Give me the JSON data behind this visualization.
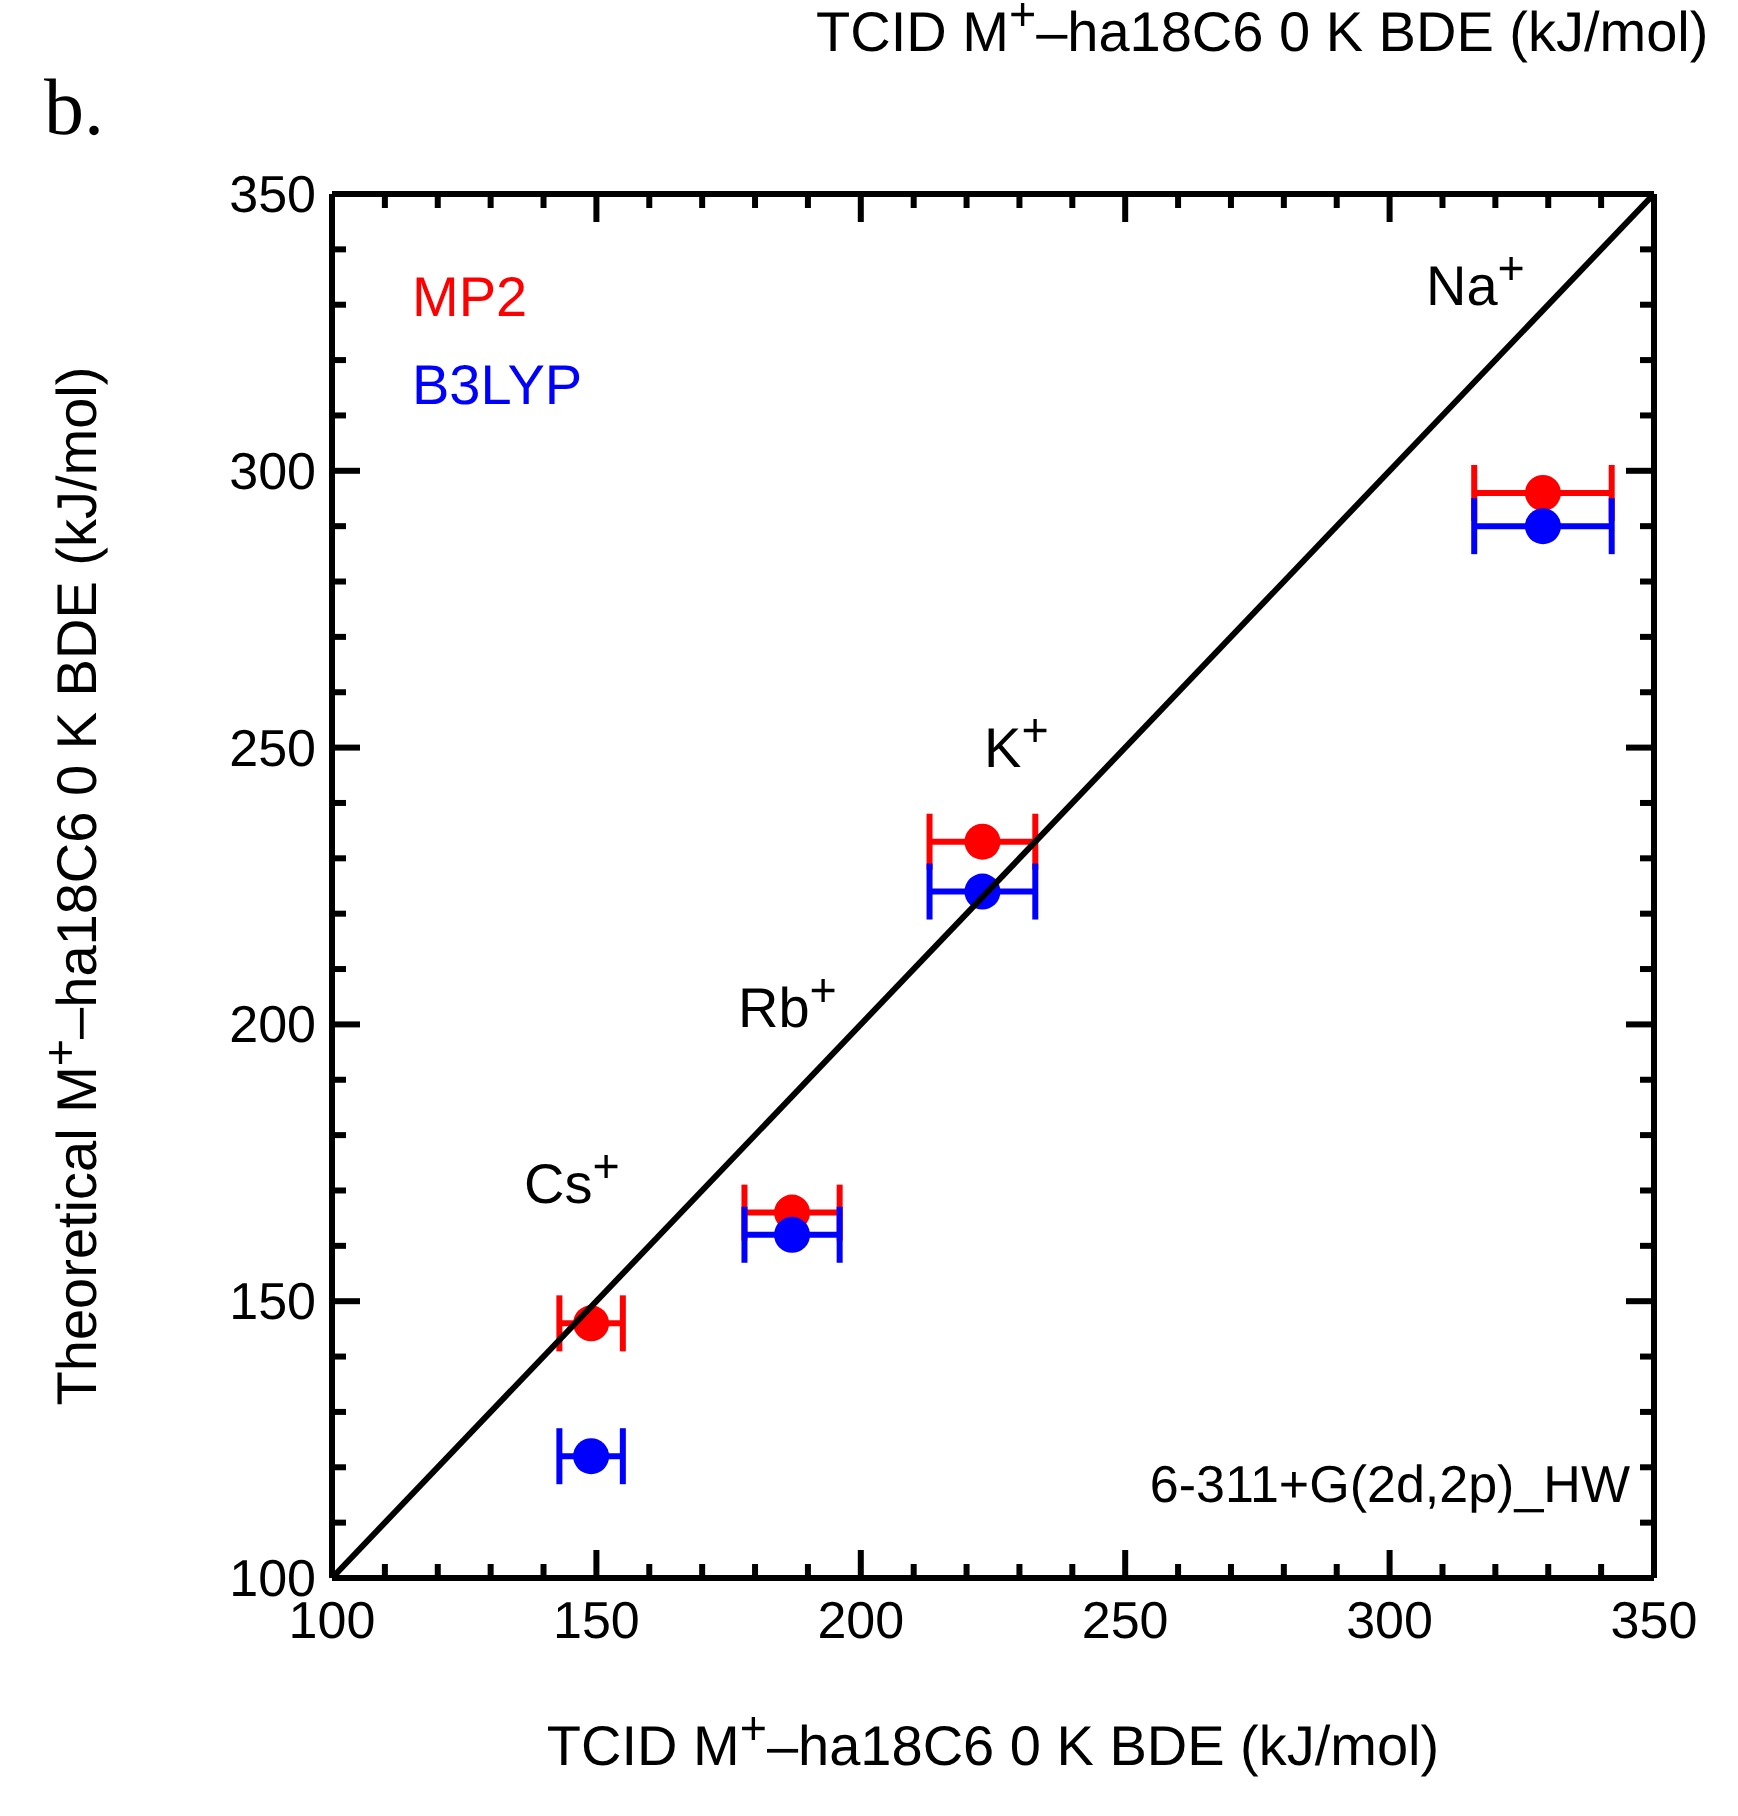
{
  "chart_data": {
    "type": "scatter",
    "xlabel": "TCID M$^{+}$–ha18C6 0 K BDE (kJ/mol)",
    "ylabel": "Theoretical M$^{+}$–ha18C6 0 K BDE (kJ/mol)",
    "xlim": [
      100,
      350
    ],
    "ylim": [
      100,
      350
    ],
    "xticks": [
      100,
      {
        "value": 110,
        "label": null
      },
      {
        "value": 120,
        "label": null
      },
      {
        "value": 130,
        "label": null
      },
      {
        "value": 140,
        "label": null
      },
      150,
      {
        "value": 160,
        "label": null
      },
      {
        "value": 170,
        "label": null
      },
      {
        "value": 180,
        "label": null
      },
      {
        "value": 190,
        "label": null
      },
      200,
      {
        "value": 210,
        "label": null
      },
      {
        "value": 220,
        "label": null
      },
      {
        "value": 230,
        "label": null
      },
      {
        "value": 240,
        "label": null
      },
      250,
      {
        "value": 260,
        "label": null
      },
      {
        "value": 270,
        "label": null
      },
      {
        "value": 280,
        "label": null
      },
      {
        "value": 290,
        "label": null
      },
      300,
      {
        "value": 310,
        "label": null
      },
      {
        "value": 320,
        "label": null
      },
      {
        "value": 330,
        "label": null
      },
      {
        "value": 340,
        "label": null
      },
      350
    ],
    "yticks": [
      100,
      {
        "value": 110,
        "label": null
      },
      {
        "value": 120,
        "label": null
      },
      {
        "value": 130,
        "label": null
      },
      {
        "value": 140,
        "label": null
      },
      150,
      {
        "value": 160,
        "label": null
      },
      {
        "value": 170,
        "label": null
      },
      {
        "value": 180,
        "label": null
      },
      {
        "value": 190,
        "label": null
      },
      200,
      {
        "value": 210,
        "label": null
      },
      {
        "value": 220,
        "label": null
      },
      {
        "value": 230,
        "label": null
      },
      {
        "value": 240,
        "label": null
      },
      250,
      {
        "value": 260,
        "label": null
      },
      {
        "value": 270,
        "label": null
      },
      {
        "value": 280,
        "label": null
      },
      {
        "value": 290,
        "label": null
      },
      300,
      {
        "value": 310,
        "label": null
      },
      {
        "value": 320,
        "label": null
      },
      {
        "value": 330,
        "label": null
      },
      {
        "value": 340,
        "label": null
      },
      350
    ],
    "legend": "top left",
    "marker": "circle",
    "series": [
      {
        "name": "MP2",
        "color": "#ff0000",
        "x": [
          329,
          223,
          187,
          149
        ],
        "values": [
          296,
          233,
          166,
          146
        ],
        "xerrors": [
          13,
          10,
          9,
          6
        ]
      },
      {
        "name": "B3LYP",
        "color": "#0000ff",
        "x": [
          329,
          223,
          187,
          149
        ],
        "values": [
          290,
          224,
          162,
          122
        ],
        "xerrors": [
          13,
          10,
          9,
          6
        ]
      },
      {
        "type": "line",
        "color": "#000000",
        "x": [
          100,
          350
        ],
        "values": [
          100,
          350
        ],
        "marker": "none",
        "line_style": "solid"
      }
    ],
    "annotations": [
      "b.",
      "TCID M$^{+}$–ha18C6 0 K BDE (kJ/mol)",
      "6-311+G(2d,2p)_HW",
      "Na$^{+}$",
      "K$^{+}$",
      "Rb$^{+}$",
      "Cs$^{+}$"
    ]
  }
}
